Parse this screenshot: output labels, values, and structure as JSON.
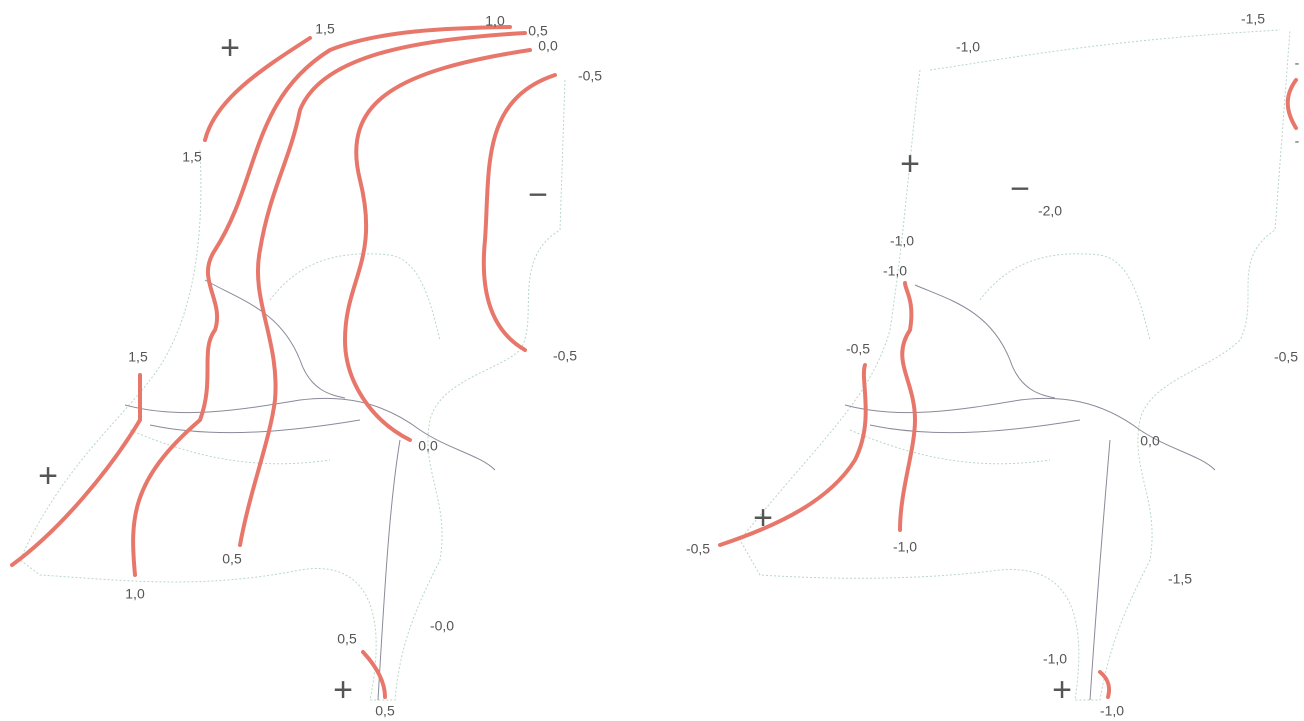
{
  "maps": [
    {
      "labels": [
        "1,5",
        "1,0",
        "0,5",
        "0,0",
        "-0,5",
        "1,5",
        "1,5",
        "-0,5",
        "0,0",
        "0,5",
        "1,0",
        "0,5",
        "-0,0",
        "0,5"
      ],
      "signs": [
        "+",
        "−",
        "+",
        "+"
      ]
    },
    {
      "labels": [
        "-1,0",
        "-1,5",
        "-2,0",
        "-1,0",
        "-1,0",
        "-0,5",
        "-0,5",
        "0,0",
        "-0,5",
        "-1,0",
        "-1,5",
        "-1,0",
        "-1,0",
        "-",
        "-"
      ],
      "signs": [
        "+",
        "−",
        "+",
        "+"
      ]
    }
  ]
}
